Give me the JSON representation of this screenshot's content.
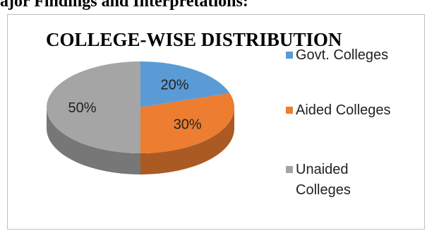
{
  "heading": "ajor Findings and Interpretations:",
  "chart_data": {
    "type": "pie",
    "title": "COLLEGE-WISE DISTRIBUTION",
    "labels": [
      "Govt. Colleges",
      "Aided Colleges",
      "Unaided Colleges"
    ],
    "values": [
      20,
      30,
      50
    ],
    "value_labels": [
      "20%",
      "30%",
      "50%"
    ],
    "colors": [
      "#5b9bd5",
      "#ed7d31",
      "#a5a5a5"
    ],
    "legend_position": "right",
    "style": "3d"
  },
  "legend": [
    {
      "lines": [
        "Govt. Colleges"
      ]
    },
    {
      "lines": [
        "Aided Colleges"
      ]
    },
    {
      "lines": [
        "Unaided",
        "Colleges"
      ]
    }
  ]
}
